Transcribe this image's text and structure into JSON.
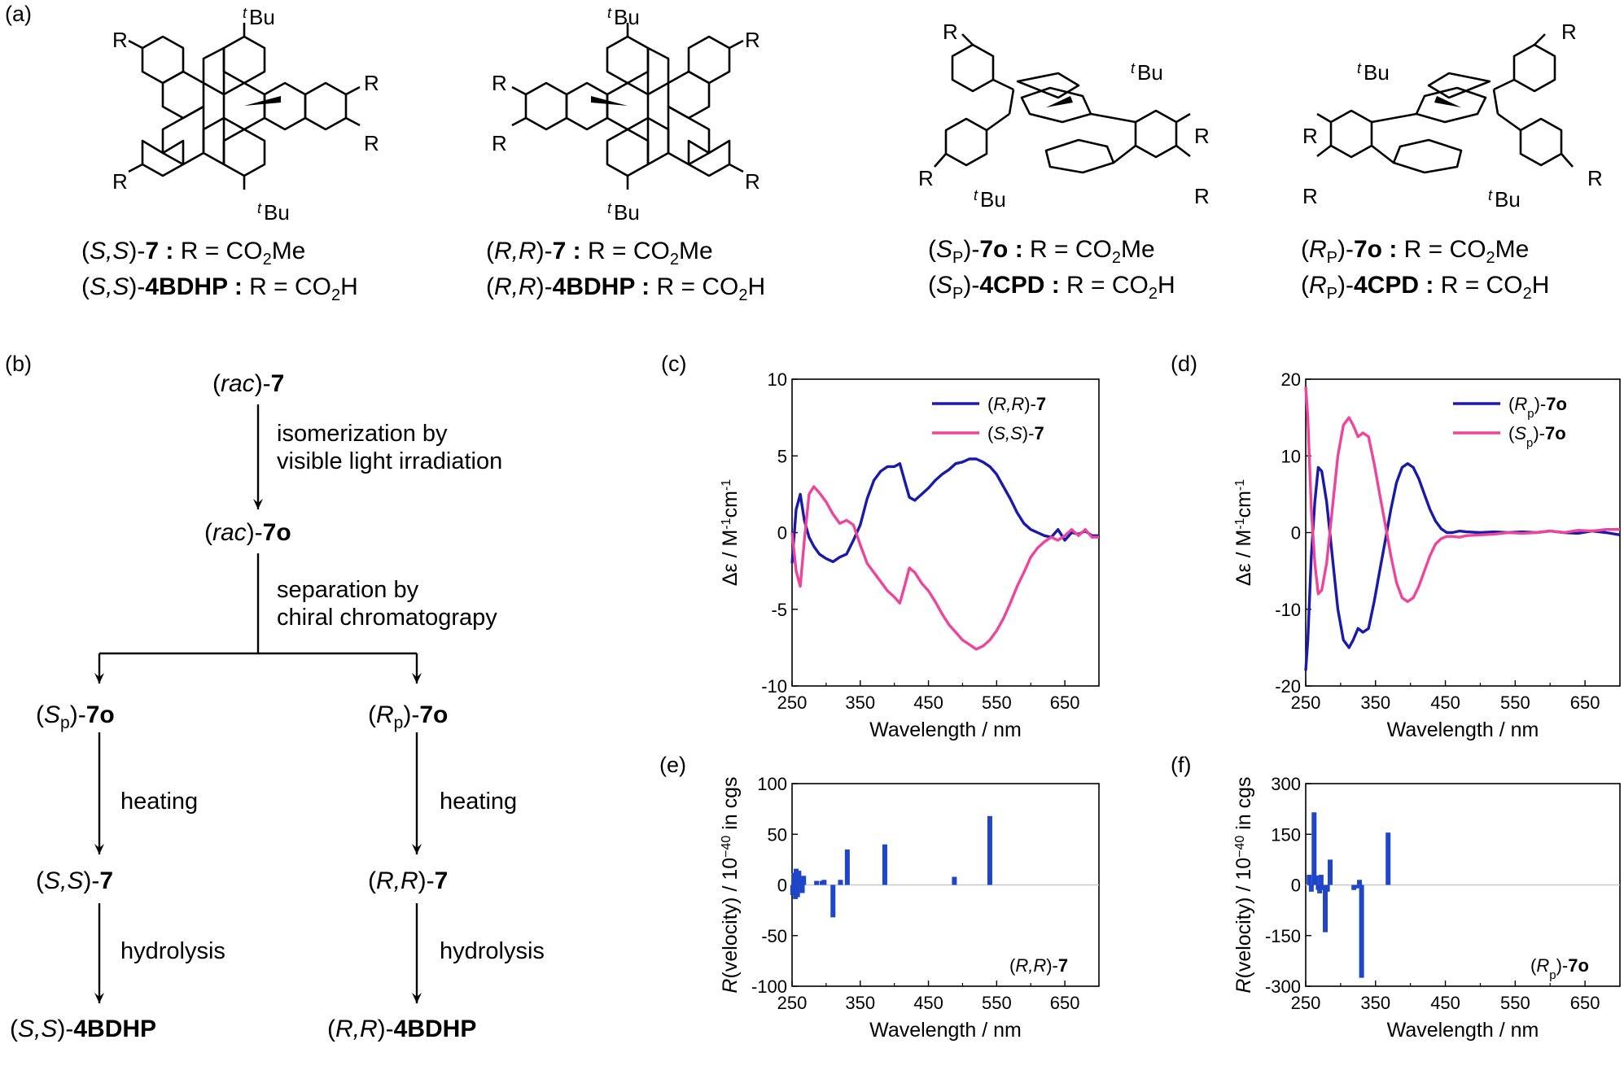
{
  "panels": {
    "a": "(a)",
    "b": "(b)",
    "c": "(c)",
    "d": "(d)",
    "e": "(e)",
    "f": "(f)"
  },
  "structures": {
    "group_R": "R",
    "tBu_sup": "t",
    "tBu_main": "Bu"
  },
  "captions_a": [
    {
      "line1_pre": "(",
      "line1_cfg": "S,S",
      "line1_mid": ")-",
      "line1_bold": "7 :",
      "line1_post": " R = CO",
      "line1_sub": "2",
      "line1_end": "Me",
      "line2_pre": "(",
      "line2_cfg": "S,S",
      "line2_mid": ")-",
      "line2_bold": "4BDHP :",
      "line2_post": " R = CO",
      "line2_sub": "2",
      "line2_end": "H"
    },
    {
      "line1_pre": "(",
      "line1_cfg": "R,R",
      "line1_mid": ")-",
      "line1_bold": "7 :",
      "line1_post": " R = CO",
      "line1_sub": "2",
      "line1_end": "Me",
      "line2_pre": "(",
      "line2_cfg": "R,R",
      "line2_mid": ")-",
      "line2_bold": "4BDHP :",
      "line2_post": " R = CO",
      "line2_sub": "2",
      "line2_end": "H"
    },
    {
      "line1_pre": "(",
      "line1_cfg": "S",
      "line1_cfgsub": "P",
      "line1_mid": ")-",
      "line1_bold": "7o :",
      "line1_post": " R = CO",
      "line1_sub": "2",
      "line1_end": "Me",
      "line2_pre": "(",
      "line2_cfg": "S",
      "line2_cfgsub": "P",
      "line2_mid": ")-",
      "line2_bold": "4CPD :",
      "line2_post": " R = CO",
      "line2_sub": "2",
      "line2_end": "H"
    },
    {
      "line1_pre": "(",
      "line1_cfg": "R",
      "line1_cfgsub": "P",
      "line1_mid": ")-",
      "line1_bold": "7o :",
      "line1_post": " R = CO",
      "line1_sub": "2",
      "line1_end": "Me",
      "line2_pre": "(",
      "line2_cfg": "R",
      "line2_cfgsub": "P",
      "line2_mid": ")-",
      "line2_bold": "4CPD :",
      "line2_post": " R = CO",
      "line2_sub": "2",
      "line2_end": "H"
    }
  ],
  "scheme_b": {
    "start": {
      "pre": "(",
      "it": "rac",
      "post": ")-",
      "bold": "7"
    },
    "step1_line1": "isomerization by",
    "step1_line2": "visible light irradiation",
    "mid": {
      "pre": "(",
      "it": "rac",
      "post": ")-",
      "bold": "7o"
    },
    "step2_line1": "separation by",
    "step2_line2": "chiral chromatograpy",
    "left_top": {
      "pre": "(",
      "it": "S",
      "sub": "p",
      "post": ")-",
      "bold": "7o"
    },
    "right_top": {
      "pre": "(",
      "it": "R",
      "sub": "p",
      "post": ")-",
      "bold": "7o"
    },
    "heating": "heating",
    "left_mid": {
      "pre": "(",
      "it": "S,S",
      "post": ")-",
      "bold": "7"
    },
    "right_mid": {
      "pre": "(",
      "it": "R,R",
      "post": ")-",
      "bold": "7"
    },
    "hydrolysis": "hydrolysis",
    "left_end": {
      "pre": "(",
      "it": "S,S",
      "post": ")-",
      "bold": "4BDHP"
    },
    "right_end": {
      "pre": "(",
      "it": "R,R",
      "post": ")-",
      "bold": "4BDHP"
    }
  },
  "colors": {
    "blue": "#1a1aaa",
    "pink": "#ee4499",
    "bar": "#1f45c8"
  },
  "chart_data": [
    {
      "id": "c",
      "type": "line",
      "xlabel": "Wavelength / nm",
      "ylabel_pre": "Δε / M",
      "ylabel_sup1": "-1",
      "ylabel_mid": "cm",
      "ylabel_sup2": "-1",
      "xlim": [
        250,
        700
      ],
      "ylim": [
        -10,
        10
      ],
      "xticks": [
        250,
        350,
        450,
        550,
        650
      ],
      "yticks": [
        10,
        5,
        0,
        -5,
        -10
      ],
      "legend": "top-right",
      "series": [
        {
          "name": "(R,R)-7",
          "name_cfg": "R,R",
          "name_bold": "7",
          "color": "#1a1aaa",
          "x": [
            250,
            256,
            262,
            268,
            275,
            282,
            290,
            300,
            310,
            320,
            330,
            340,
            350,
            360,
            370,
            380,
            390,
            400,
            408,
            415,
            422,
            430,
            440,
            450,
            460,
            470,
            480,
            490,
            500,
            510,
            520,
            530,
            540,
            550,
            560,
            570,
            580,
            590,
            600,
            610,
            620,
            630,
            640,
            650,
            660,
            670,
            680,
            690,
            700
          ],
          "y": [
            -2,
            1.5,
            2.5,
            0.8,
            -0.3,
            -0.9,
            -1.4,
            -1.7,
            -1.9,
            -1.6,
            -1.4,
            -0.5,
            0.5,
            2.2,
            3.4,
            4.0,
            4.3,
            4.3,
            4.5,
            3.4,
            2.3,
            2.1,
            2.5,
            2.9,
            3.4,
            3.8,
            4.1,
            4.5,
            4.6,
            4.8,
            4.8,
            4.6,
            4.3,
            3.8,
            3.0,
            2.2,
            1.3,
            0.6,
            0.2,
            0.0,
            -0.2,
            -0.3,
            0.2,
            -0.5,
            0.0,
            -0.1,
            0.1,
            -0.2,
            -0.2
          ]
        },
        {
          "name": "(S,S)-7",
          "name_cfg": "S,S",
          "name_bold": "7",
          "color": "#ee4499",
          "x": [
            250,
            256,
            262,
            268,
            275,
            282,
            290,
            300,
            310,
            320,
            330,
            340,
            350,
            360,
            370,
            380,
            390,
            400,
            408,
            415,
            422,
            430,
            440,
            450,
            460,
            470,
            480,
            490,
            500,
            510,
            520,
            530,
            540,
            550,
            560,
            570,
            580,
            590,
            600,
            610,
            620,
            630,
            640,
            650,
            660,
            670,
            680,
            690,
            700
          ],
          "y": [
            0,
            -2.5,
            -3.5,
            -0.5,
            2.5,
            3.0,
            2.6,
            2.0,
            1.2,
            0.6,
            0.8,
            0.5,
            -0.8,
            -2.0,
            -2.6,
            -3.2,
            -3.8,
            -4.2,
            -4.6,
            -3.5,
            -2.3,
            -2.6,
            -3.3,
            -3.8,
            -4.5,
            -5.3,
            -6.0,
            -6.5,
            -7.0,
            -7.3,
            -7.6,
            -7.4,
            -7.0,
            -6.4,
            -5.6,
            -4.6,
            -3.5,
            -2.6,
            -1.6,
            -1.0,
            -0.6,
            -0.3,
            -0.5,
            -0.2,
            0.2,
            -0.2,
            0.2,
            -0.3,
            -0.3
          ]
        }
      ]
    },
    {
      "id": "d",
      "type": "line",
      "xlabel": "Wavelength / nm",
      "ylabel_pre": "Δε / M",
      "ylabel_sup1": "-1",
      "ylabel_mid": "cm",
      "ylabel_sup2": "-1",
      "xlim": [
        250,
        700
      ],
      "ylim": [
        -20,
        20
      ],
      "xticks": [
        250,
        350,
        450,
        550,
        650
      ],
      "yticks": [
        20,
        10,
        0,
        -10,
        -20
      ],
      "legend": "top-right",
      "series": [
        {
          "name": "(Rp)-7o",
          "name_cfg": "R",
          "name_cfgsub": "p",
          "name_bold": "7o",
          "color": "#1a1aaa",
          "x": [
            250,
            253,
            258,
            263,
            268,
            273,
            280,
            288,
            296,
            304,
            312,
            318,
            325,
            332,
            340,
            348,
            356,
            364,
            372,
            380,
            388,
            396,
            404,
            412,
            420,
            428,
            436,
            444,
            452,
            460,
            470,
            480,
            500,
            520,
            540,
            560,
            580,
            600,
            620,
            640,
            660,
            680,
            700
          ],
          "y": [
            -18,
            -14,
            -3,
            4,
            8.5,
            8.0,
            4,
            -3,
            -10,
            -14,
            -15,
            -14,
            -12.5,
            -13,
            -12.5,
            -9,
            -5,
            -1,
            3,
            6.5,
            8.5,
            9,
            8.5,
            7,
            5,
            3,
            1.5,
            0.5,
            0,
            0,
            0.2,
            0.1,
            0,
            0.1,
            0,
            0.1,
            0,
            0.2,
            0,
            -0.1,
            0.2,
            0,
            -0.3
          ]
        },
        {
          "name": "(Sp)-7o",
          "name_cfg": "S",
          "name_cfgsub": "p",
          "name_bold": "7o",
          "color": "#ee4499",
          "x": [
            250,
            253,
            258,
            263,
            268,
            273,
            280,
            288,
            296,
            304,
            312,
            318,
            325,
            332,
            340,
            348,
            356,
            364,
            372,
            380,
            388,
            396,
            404,
            412,
            420,
            428,
            436,
            444,
            452,
            460,
            470,
            480,
            500,
            520,
            540,
            560,
            580,
            600,
            620,
            640,
            660,
            680,
            700
          ],
          "y": [
            19,
            15,
            3,
            -4,
            -8,
            -7.5,
            -4,
            3,
            10,
            14,
            15,
            14,
            12.5,
            13,
            12.5,
            9,
            5,
            1,
            -3,
            -6.5,
            -8.5,
            -9,
            -8.5,
            -7,
            -5,
            -3,
            -1.5,
            -0.8,
            -0.5,
            -0.5,
            -0.6,
            -0.4,
            -0.3,
            -0.2,
            0,
            -0.1,
            0,
            0.2,
            0,
            0.3,
            0.2,
            0.4,
            0.4
          ]
        }
      ]
    },
    {
      "id": "e",
      "type": "bar",
      "xlabel": "Wavelength / nm",
      "ylabel_it": "R",
      "ylabel_mid": "(velocity) / 10",
      "ylabel_sup": "−40",
      "ylabel_end": " in cgs",
      "xlim": [
        250,
        700
      ],
      "ylim": [
        -100,
        100
      ],
      "xticks": [
        250,
        350,
        450,
        550,
        650
      ],
      "yticks": [
        100,
        50,
        0,
        -50,
        -100
      ],
      "annotation_cfg": "R,R",
      "annotation_bold": "7",
      "x": [
        251,
        253,
        255,
        256,
        258,
        260,
        262,
        265,
        267,
        286,
        294,
        297,
        310,
        321,
        331,
        386,
        488,
        540
      ],
      "values": [
        -10,
        12,
        -14,
        16,
        -12,
        14,
        5,
        -8,
        9,
        4,
        4,
        5,
        -32,
        5,
        35,
        40,
        8,
        68
      ]
    },
    {
      "id": "f",
      "type": "bar",
      "xlabel": "Wavelength / nm",
      "ylabel_it": "R",
      "ylabel_mid": "(velocity) / 10",
      "ylabel_sup": "−40",
      "ylabel_end": " in cgs",
      "xlim": [
        250,
        700
      ],
      "ylim": [
        -300,
        300
      ],
      "xticks": [
        250,
        350,
        450,
        550,
        650
      ],
      "yticks": [
        300,
        150,
        0,
        -150,
        -300
      ],
      "annotation_cfg": "R",
      "annotation_cfgsub": "p",
      "annotation_bold": "7o",
      "x": [
        255,
        258,
        262,
        265,
        268,
        270,
        272,
        275,
        278,
        281,
        285,
        319,
        323,
        327,
        330,
        368
      ],
      "values": [
        30,
        -20,
        215,
        28,
        -15,
        -25,
        30,
        -15,
        -140,
        -20,
        75,
        -15,
        -10,
        15,
        -275,
        155
      ]
    }
  ]
}
